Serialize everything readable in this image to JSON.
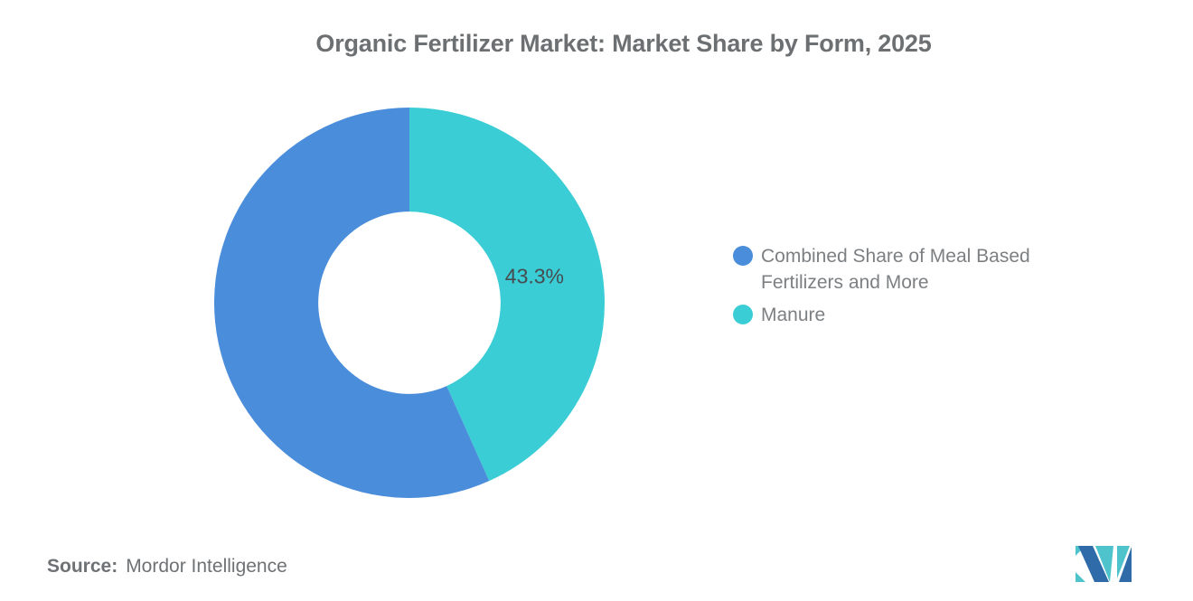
{
  "chart_data": {
    "type": "pie",
    "subtype": "donut",
    "title": "Organic Fertilizer Market: Market Share by Form, 2025",
    "slices": [
      {
        "label": "Combined Share of Meal Based Fertilizers and More",
        "value": 56.7,
        "color": "#4a8dda",
        "data_label": ""
      },
      {
        "label": "Manure",
        "value": 43.3,
        "color": "#3bcdd5",
        "data_label": "43.3%"
      }
    ],
    "start_angle": "top",
    "inner_radius_ratio": 0.467,
    "legend_position": "right",
    "title_color": "#6d7072",
    "legend_text_color": "#7d8083",
    "data_label_color": "#474c50"
  },
  "source": {
    "prefix": "Source:",
    "text": "Mordor Intelligence",
    "color": "#6f7275"
  },
  "logo": {
    "name": "Mordor Intelligence logo",
    "blue": "#2f6ba8",
    "teal": "#4fc3cc"
  }
}
